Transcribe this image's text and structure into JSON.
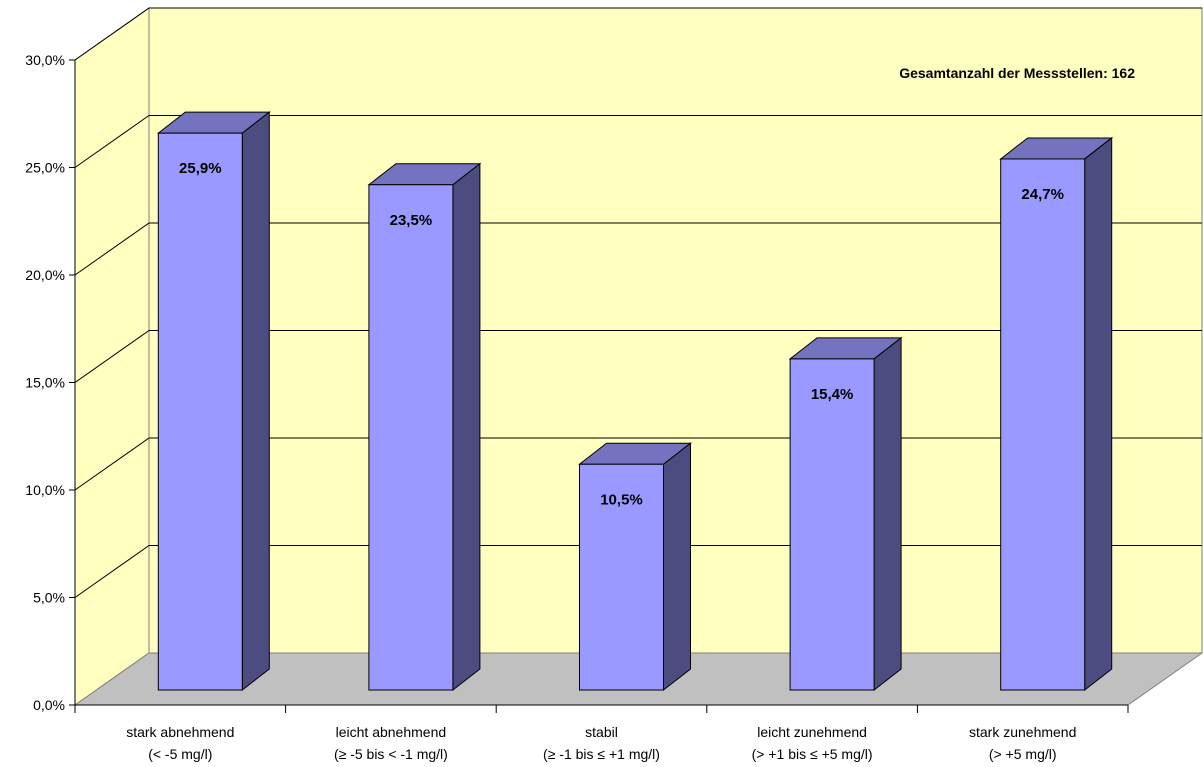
{
  "chart_data": {
    "type": "bar",
    "title": "",
    "xlabel": "",
    "ylabel": "",
    "annotation": "Gesamtanzahl der Messstellen: 162",
    "categories": [
      {
        "line1": "stark abnehmend",
        "line2": "(< -5 mg/l)"
      },
      {
        "line1": "leicht abnehmend",
        "line2": "(≥ -5 bis < -1 mg/l)"
      },
      {
        "line1": "stabil",
        "line2": "(≥ -1 bis ≤ +1 mg/l)"
      },
      {
        "line1": "leicht zunehmend",
        "line2": "(> +1 bis ≤ +5 mg/l)"
      },
      {
        "line1": "stark zunehmend",
        "line2": "(> +5 mg/l)"
      }
    ],
    "values": [
      25.9,
      23.5,
      10.5,
      15.4,
      24.7
    ],
    "data_labels": [
      "25,9%",
      "23,5%",
      "10,5%",
      "15,4%",
      "24,7%"
    ],
    "ylim": [
      0,
      30
    ],
    "yticks": [
      0,
      5,
      10,
      15,
      20,
      25,
      30
    ],
    "ytick_labels": [
      "0,0%",
      "5,0%",
      "10,0%",
      "15,0%",
      "20,0%",
      "25,0%",
      "30,0%"
    ],
    "grid": true,
    "legend": "none",
    "colors": {
      "wall": "#ffffc0",
      "floor": "#c0c0c0",
      "bar_front": "#9999ff",
      "bar_top": "#7373bf",
      "bar_side": "#4c4c80",
      "grid": "#000000"
    }
  }
}
